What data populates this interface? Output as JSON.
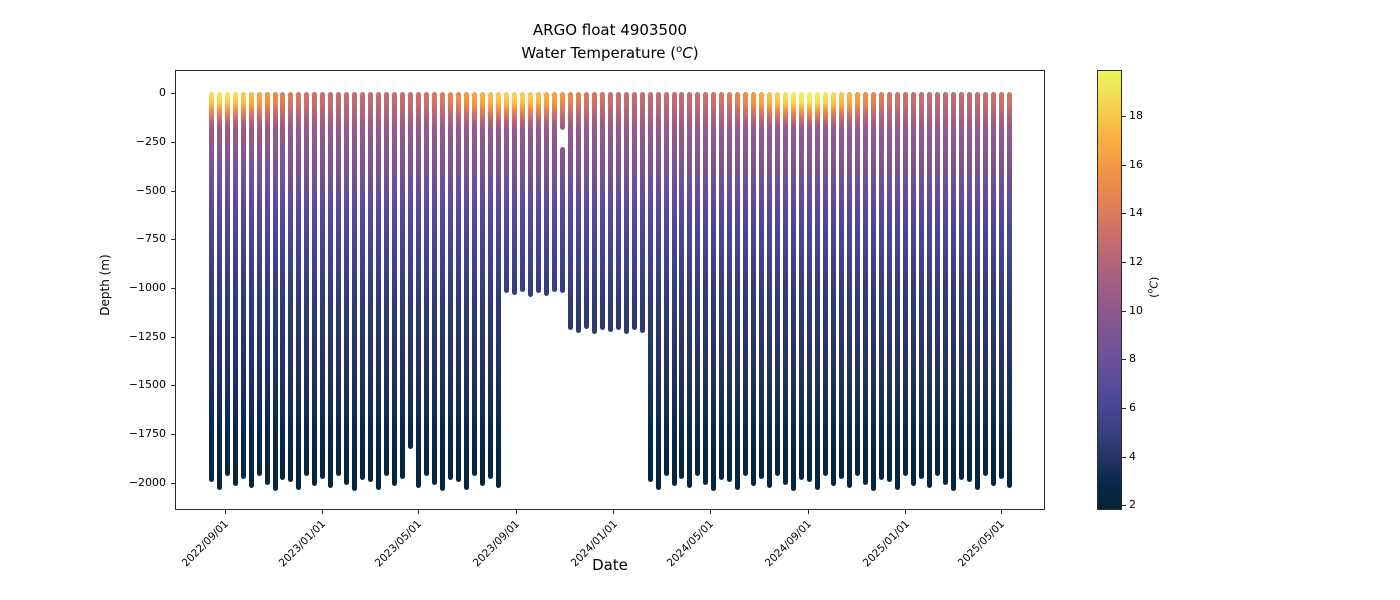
{
  "chart_data": {
    "type": "scatter",
    "title": "ARGO float 4903500",
    "subtitle": {
      "pre": "Water Temperature (",
      "sup": "o",
      "italic": "C",
      "post": ")"
    },
    "xlabel": "Date",
    "ylabel": "Depth (m)",
    "legend_position": "none",
    "grid": false,
    "x_ticks": [
      "2022/09/01",
      "2023/01/01",
      "2023/05/01",
      "2023/09/01",
      "2024/01/01",
      "2024/05/01",
      "2024/09/01",
      "2025/01/01",
      "2025/05/01"
    ],
    "y_ticks": [
      {
        "v": 0,
        "label": "0"
      },
      {
        "v": -250,
        "label": "−250"
      },
      {
        "v": -500,
        "label": "−500"
      },
      {
        "v": -750,
        "label": "−750"
      },
      {
        "v": -1000,
        "label": "−1000"
      },
      {
        "v": -1250,
        "label": "−1250"
      },
      {
        "v": -1500,
        "label": "−1500"
      },
      {
        "v": -1750,
        "label": "−1750"
      },
      {
        "v": -2000,
        "label": "−2000"
      }
    ],
    "ylim": [
      120,
      -2140
    ],
    "xlim": [
      "2022/07/01",
      "2025/06/25"
    ],
    "colorbar": {
      "vmin": 1.8,
      "vmax": 19.9,
      "ticks": [
        2,
        4,
        6,
        8,
        10,
        12,
        14,
        16,
        18
      ],
      "label": {
        "pre": "(",
        "sup": "o",
        "italic": "C",
        "post": ")"
      },
      "colormap": "cmocean-thermal",
      "stops": [
        [
          0.0,
          "#042333"
        ],
        [
          0.06,
          "#07294b"
        ],
        [
          0.12,
          "#263567"
        ],
        [
          0.18,
          "#3a3f82"
        ],
        [
          0.24,
          "#4a4896"
        ],
        [
          0.3,
          "#5d4d99"
        ],
        [
          0.36,
          "#705297"
        ],
        [
          0.42,
          "#835690"
        ],
        [
          0.48,
          "#955b89"
        ],
        [
          0.54,
          "#ab617e"
        ],
        [
          0.6,
          "#c16a71"
        ],
        [
          0.66,
          "#d77760"
        ],
        [
          0.72,
          "#e9854d"
        ],
        [
          0.78,
          "#f59743"
        ],
        [
          0.84,
          "#f9ad42"
        ],
        [
          0.9,
          "#f8c84c"
        ],
        [
          0.95,
          "#f1e155"
        ],
        [
          1.0,
          "#eaf55b"
        ]
      ]
    },
    "deep_reference_profile": [
      [
        0,
        11.8
      ],
      [
        100,
        11.2
      ],
      [
        200,
        10.4
      ],
      [
        300,
        9.5
      ],
      [
        400,
        8.6
      ],
      [
        500,
        7.7
      ],
      [
        600,
        6.9
      ],
      [
        700,
        6.2
      ],
      [
        800,
        5.7
      ],
      [
        900,
        5.2
      ],
      [
        1000,
        4.8
      ],
      [
        1100,
        4.5
      ],
      [
        1200,
        4.3
      ],
      [
        1400,
        3.8
      ],
      [
        1600,
        3.3
      ],
      [
        1800,
        2.7
      ],
      [
        2000,
        2.3
      ]
    ],
    "mixed_layer": {
      "full_depth": 35,
      "zero_depth": 180,
      "exponent": 1.3
    },
    "profiles": [
      {
        "d": "2022/08/14",
        "t": 18.8,
        "b": -1980
      },
      {
        "d": "2022/08/24",
        "t": 19.1,
        "b": -2020
      },
      {
        "d": "2022/09/03",
        "t": 19.0,
        "b": -1950
      },
      {
        "d": "2022/09/13",
        "t": 18.6,
        "b": -2000
      },
      {
        "d": "2022/09/23",
        "t": 18.1,
        "b": -1965
      },
      {
        "d": "2022/10/03",
        "t": 17.4,
        "b": -2010
      },
      {
        "d": "2022/10/13",
        "t": 16.6,
        "b": -1945
      },
      {
        "d": "2022/10/23",
        "t": 15.9,
        "b": -1995
      },
      {
        "d": "2022/11/02",
        "t": 15.2,
        "b": -2025
      },
      {
        "d": "2022/11/12",
        "t": 14.6,
        "b": -1970
      },
      {
        "d": "2022/11/22",
        "t": 14.1,
        "b": -1980
      },
      {
        "d": "2022/12/02",
        "t": 13.8,
        "b": -2020
      },
      {
        "d": "2022/12/12",
        "t": 13.5,
        "b": -1950
      },
      {
        "d": "2022/12/22",
        "t": 13.3,
        "b": -2000
      },
      {
        "d": "2023/01/01",
        "t": 13.2,
        "b": -1965
      },
      {
        "d": "2023/01/11",
        "t": 13.1,
        "b": -2010
      },
      {
        "d": "2023/01/21",
        "t": 13.0,
        "b": -1945
      },
      {
        "d": "2023/01/31",
        "t": 12.9,
        "b": -1995
      },
      {
        "d": "2023/02/10",
        "t": 12.9,
        "b": -2025
      },
      {
        "d": "2023/02/20",
        "t": 12.8,
        "b": -1970
      },
      {
        "d": "2023/03/02",
        "t": 12.8,
        "b": -1980
      },
      {
        "d": "2023/03/12",
        "t": 12.8,
        "b": -2020
      },
      {
        "d": "2023/03/22",
        "t": 12.8,
        "b": -1950
      },
      {
        "d": "2023/04/01",
        "t": 12.9,
        "b": -2000
      },
      {
        "d": "2023/04/11",
        "t": 13.0,
        "b": -1965
      },
      {
        "d": "2023/04/21",
        "t": 13.1,
        "b": -1810
      },
      {
        "d": "2023/05/01",
        "t": 13.3,
        "b": -2010
      },
      {
        "d": "2023/05/11",
        "t": 13.5,
        "b": -1945
      },
      {
        "d": "2023/05/21",
        "t": 13.8,
        "b": -1995
      },
      {
        "d": "2023/05/31",
        "t": 14.2,
        "b": -2025
      },
      {
        "d": "2023/06/10",
        "t": 14.7,
        "b": -1970
      },
      {
        "d": "2023/06/20",
        "t": 15.3,
        "b": -1980
      },
      {
        "d": "2023/06/30",
        "t": 15.9,
        "b": -2020
      },
      {
        "d": "2023/07/10",
        "t": 16.6,
        "b": -1950
      },
      {
        "d": "2023/07/20",
        "t": 17.2,
        "b": -2000
      },
      {
        "d": "2023/07/30",
        "t": 17.7,
        "b": -1965
      },
      {
        "d": "2023/08/09",
        "t": 18.1,
        "b": -2010
      },
      {
        "d": "2023/08/19",
        "t": 18.4,
        "b": -1005
      },
      {
        "d": "2023/08/29",
        "t": 18.5,
        "b": -1020
      },
      {
        "d": "2023/09/08",
        "t": 18.4,
        "b": -1000
      },
      {
        "d": "2023/09/18",
        "t": 18.1,
        "b": -1030
      },
      {
        "d": "2023/09/28",
        "t": 17.7,
        "b": -1010
      },
      {
        "d": "2023/10/08",
        "t": 17.1,
        "b": -1025
      },
      {
        "d": "2023/10/18",
        "t": 16.4,
        "b": -1000
      },
      {
        "d": "2023/10/28",
        "t": 15.7,
        "b": -1010,
        "gap": [
          -170,
          -285
        ]
      },
      {
        "d": "2023/11/07",
        "t": 15.0,
        "b": -1195
      },
      {
        "d": "2023/11/17",
        "t": 14.5,
        "b": -1215
      },
      {
        "d": "2023/11/27",
        "t": 14.0,
        "b": -1190
      },
      {
        "d": "2023/12/07",
        "t": 13.7,
        "b": -1220
      },
      {
        "d": "2023/12/17",
        "t": 13.4,
        "b": -1200
      },
      {
        "d": "2023/12/27",
        "t": 13.2,
        "b": -1210
      },
      {
        "d": "2024/01/06",
        "t": 13.1,
        "b": -1195
      },
      {
        "d": "2024/01/16",
        "t": 13.0,
        "b": -1220
      },
      {
        "d": "2024/01/26",
        "t": 12.9,
        "b": -1200
      },
      {
        "d": "2024/02/05",
        "t": 12.9,
        "b": -1215
      },
      {
        "d": "2024/02/15",
        "t": 12.8,
        "b": -1980
      },
      {
        "d": "2024/02/25",
        "t": 12.8,
        "b": -2020
      },
      {
        "d": "2024/03/06",
        "t": 12.8,
        "b": -1950
      },
      {
        "d": "2024/03/16",
        "t": 12.8,
        "b": -2000
      },
      {
        "d": "2024/03/26",
        "t": 12.9,
        "b": -1965
      },
      {
        "d": "2024/04/05",
        "t": 13.0,
        "b": -2010
      },
      {
        "d": "2024/04/15",
        "t": 13.1,
        "b": -1945
      },
      {
        "d": "2024/04/25",
        "t": 13.3,
        "b": -1995
      },
      {
        "d": "2024/05/05",
        "t": 13.5,
        "b": -2025
      },
      {
        "d": "2024/05/15",
        "t": 13.8,
        "b": -1970
      },
      {
        "d": "2024/05/25",
        "t": 14.2,
        "b": -1980
      },
      {
        "d": "2024/06/04",
        "t": 14.8,
        "b": -2020
      },
      {
        "d": "2024/06/14",
        "t": 15.4,
        "b": -1950
      },
      {
        "d": "2024/06/24",
        "t": 16.1,
        "b": -2000
      },
      {
        "d": "2024/07/04",
        "t": 16.9,
        "b": -1965
      },
      {
        "d": "2024/07/14",
        "t": 17.7,
        "b": -2010
      },
      {
        "d": "2024/07/24",
        "t": 18.4,
        "b": -1945
      },
      {
        "d": "2024/08/03",
        "t": 19.0,
        "b": -1995
      },
      {
        "d": "2024/08/13",
        "t": 19.4,
        "b": -2025
      },
      {
        "d": "2024/08/23",
        "t": 19.7,
        "b": -1970
      },
      {
        "d": "2024/09/02",
        "t": 19.8,
        "b": -1980
      },
      {
        "d": "2024/09/12",
        "t": 19.6,
        "b": -2020
      },
      {
        "d": "2024/09/22",
        "t": 19.2,
        "b": -1950
      },
      {
        "d": "2024/10/02",
        "t": 18.7,
        "b": -2000
      },
      {
        "d": "2024/10/12",
        "t": 18.0,
        "b": -1965
      },
      {
        "d": "2024/10/22",
        "t": 17.2,
        "b": -2010
      },
      {
        "d": "2024/11/01",
        "t": 16.3,
        "b": -1945
      },
      {
        "d": "2024/11/11",
        "t": 15.5,
        "b": -1995
      },
      {
        "d": "2024/11/21",
        "t": 14.8,
        "b": -2025
      },
      {
        "d": "2024/12/01",
        "t": 14.2,
        "b": -1970
      },
      {
        "d": "2024/12/11",
        "t": 13.8,
        "b": -1980
      },
      {
        "d": "2024/12/21",
        "t": 13.5,
        "b": -2020
      },
      {
        "d": "2024/12/31",
        "t": 13.3,
        "b": -1950
      },
      {
        "d": "2025/01/10",
        "t": 13.1,
        "b": -2000
      },
      {
        "d": "2025/01/20",
        "t": 13.0,
        "b": -1965
      },
      {
        "d": "2025/01/30",
        "t": 12.9,
        "b": -2010
      },
      {
        "d": "2025/02/09",
        "t": 12.9,
        "b": -1945
      },
      {
        "d": "2025/02/19",
        "t": 12.8,
        "b": -1995
      },
      {
        "d": "2025/03/01",
        "t": 12.8,
        "b": -2025
      },
      {
        "d": "2025/03/11",
        "t": 12.8,
        "b": -1970
      },
      {
        "d": "2025/03/21",
        "t": 12.8,
        "b": -1980
      },
      {
        "d": "2025/03/31",
        "t": 12.9,
        "b": -2020
      },
      {
        "d": "2025/04/10",
        "t": 13.0,
        "b": -1950
      },
      {
        "d": "2025/04/20",
        "t": 13.2,
        "b": -2000
      },
      {
        "d": "2025/04/30",
        "t": 13.4,
        "b": -1965
      },
      {
        "d": "2025/05/10",
        "t": 13.6,
        "b": -2010
      }
    ]
  }
}
